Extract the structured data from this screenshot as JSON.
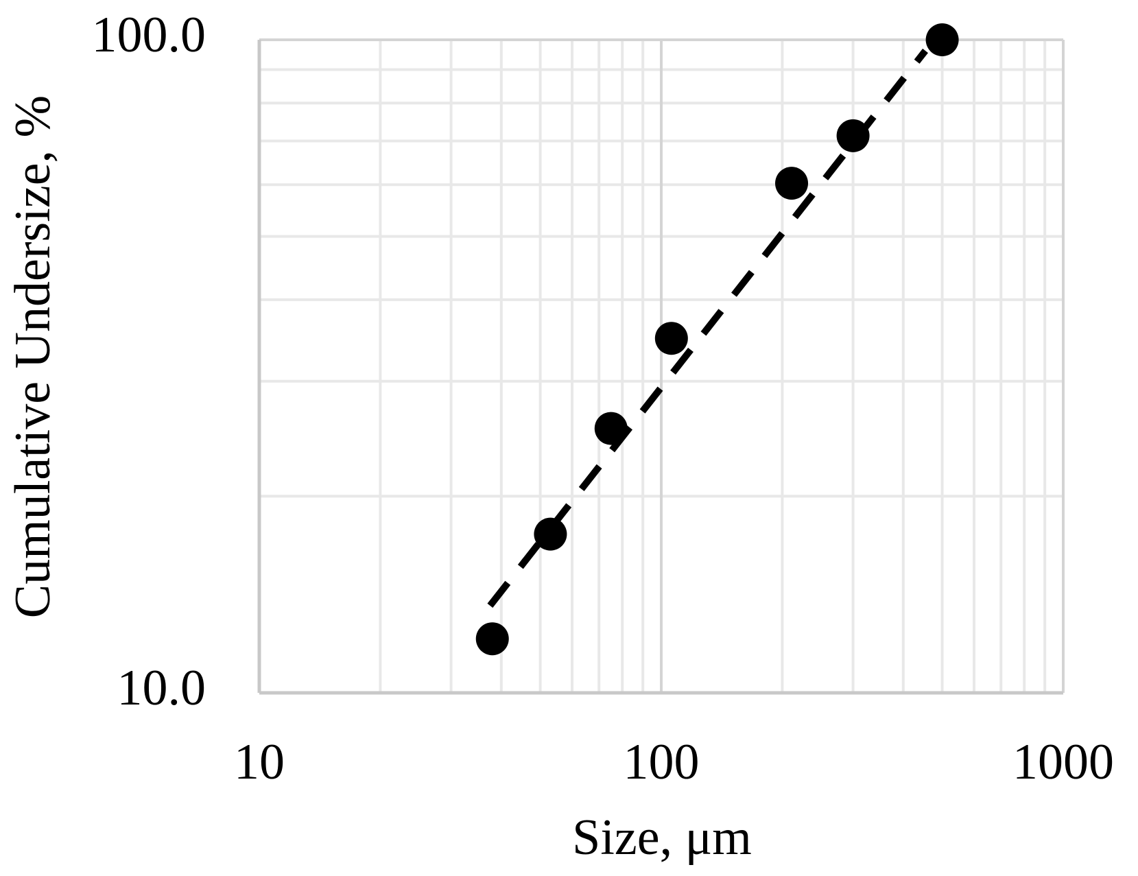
{
  "chart_data": {
    "type": "scatter",
    "x_label": "Size, μm",
    "y_label": "Cumulative Undersize, %",
    "x": [
      38,
      53,
      75,
      106,
      211,
      300,
      500
    ],
    "values": [
      12.1,
      17.5,
      25.4,
      34.9,
      60.3,
      71.3,
      100
    ],
    "color": "#000000",
    "trend": {
      "x": [
        37.5,
        454
      ],
      "values": [
        13.6,
        96.2
      ],
      "color": "#000000"
    },
    "xlim": [
      10,
      1000
    ],
    "ylim": [
      10,
      100
    ],
    "xticks": [
      10,
      100,
      1000
    ],
    "yticks": [
      {
        "value": 10,
        "label": "10.0"
      },
      {
        "value": 100,
        "label": "100.0"
      }
    ],
    "xlog": true,
    "ylog": true,
    "grid": true,
    "minor_grid": true
  }
}
